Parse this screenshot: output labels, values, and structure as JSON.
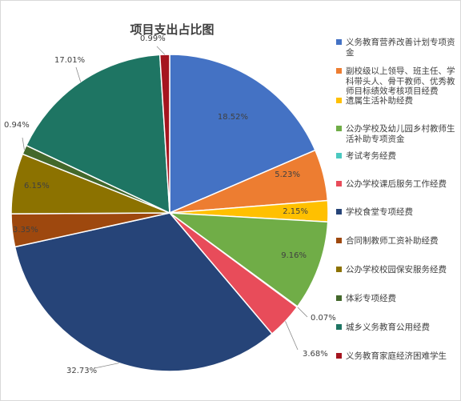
{
  "chart_data": {
    "type": "pie",
    "title": "项目支出占比图",
    "legend_position": "right",
    "slices": [
      {
        "label": "义务教育营养改善计划专项资金",
        "value": 18.52,
        "display": "18.52%",
        "color": "#4472C4"
      },
      {
        "label": "副校级以上领导、班主任、学科带头人、骨干教师、优秀教师目标绩效考核项目经费",
        "value": 5.23,
        "display": "5.23%",
        "color": "#ED7D31"
      },
      {
        "label": "遗属生活补助经费",
        "value": 2.15,
        "display": "2.15%",
        "color": "#FFC000"
      },
      {
        "label": "公办学校及幼儿园乡村教师生活补助专项资金",
        "value": 9.16,
        "display": "9.16%",
        "color": "#70AD47"
      },
      {
        "label": "考试考务经费",
        "value": 0.07,
        "display": "0.07%",
        "color": "#4BC9C0"
      },
      {
        "label": "公办学校课后服务工作经费",
        "value": 3.68,
        "display": "3.68%",
        "color": "#E84C5A"
      },
      {
        "label": "学校食堂专项经费",
        "value": 32.73,
        "display": "32.73%",
        "color": "#264478"
      },
      {
        "label": "合同制教师工资补助经费",
        "value": 3.35,
        "display": "3.35%",
        "color": "#9E480E"
      },
      {
        "label": "公办学校校园保安服务经费",
        "value": 6.15,
        "display": "6.15%",
        "color": "#8C7200"
      },
      {
        "label": "体彩专项经费",
        "value": 0.94,
        "display": "0.94%",
        "color": "#43682B"
      },
      {
        "label": "城乡义务教育公用经费",
        "value": 17.01,
        "display": "17.01%",
        "color": "#1E7563"
      },
      {
        "label": "义务教育家庭经济困难学生",
        "value": 0.99,
        "display": "0.99%",
        "color": "#A5151F"
      }
    ]
  }
}
